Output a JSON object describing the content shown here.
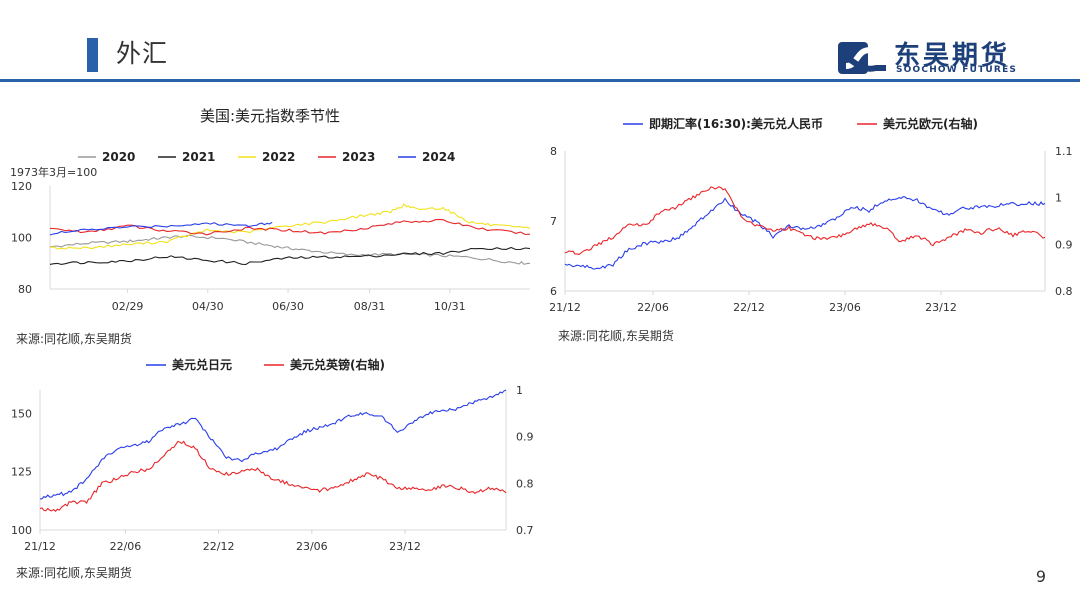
{
  "header": {
    "title": "外汇",
    "logo_name": "东吴期货",
    "logo_sub": "SOOCHOW FUTURES"
  },
  "page_number": "9",
  "chart_data": [
    {
      "id": "usd_index_seasonal",
      "type": "line",
      "title": "美国:美元指数季节性",
      "unit_note": "1973年3月=100",
      "x_ticks": [
        "02/29",
        "04/30",
        "06/30",
        "08/31",
        "10/31"
      ],
      "x_range_day_of_year": [
        1,
        366
      ],
      "ylim": [
        80,
        120
      ],
      "y_ticks": [
        80,
        100,
        120
      ],
      "source": "来源:同花顺,东吴期货",
      "series": [
        {
          "name": "2020",
          "color": "#999999",
          "day": [
            1,
            30,
            60,
            80,
            100,
            130,
            160,
            180,
            200,
            230,
            260,
            290,
            320,
            350,
            366
          ],
          "values": [
            96.4,
            97.8,
            98.5,
            99.5,
            100.5,
            99.8,
            97.5,
            96.0,
            94.8,
            93.2,
            93.5,
            93.2,
            92.3,
            90.5,
            89.9
          ]
        },
        {
          "name": "2021",
          "color": "#222222",
          "day": [
            1,
            30,
            60,
            90,
            120,
            150,
            180,
            210,
            240,
            270,
            300,
            330,
            366
          ],
          "values": [
            89.9,
            90.4,
            90.9,
            92.6,
            91.2,
            89.9,
            92.0,
            92.4,
            92.7,
            93.6,
            93.9,
            95.9,
            95.7
          ]
        },
        {
          "name": "2022",
          "color": "#f2e21c",
          "day": [
            1,
            30,
            60,
            90,
            120,
            150,
            180,
            210,
            240,
            260,
            270,
            280,
            300,
            320,
            340,
            366
          ],
          "values": [
            95.9,
            96.0,
            97.3,
            98.5,
            102.8,
            102.0,
            104.5,
            106.0,
            108.6,
            110.0,
            112.5,
            111.0,
            111.5,
            106.0,
            104.6,
            103.5
          ]
        },
        {
          "name": "2023",
          "color": "#e8262a",
          "day": [
            1,
            30,
            60,
            90,
            120,
            150,
            180,
            210,
            240,
            270,
            300,
            330,
            366
          ],
          "values": [
            103.5,
            102.0,
            104.6,
            102.5,
            101.5,
            103.5,
            102.9,
            101.7,
            103.6,
            106.2,
            106.6,
            103.3,
            101.3
          ]
        },
        {
          "name": "2024",
          "color": "#2a3ee8",
          "day": [
            1,
            30,
            60,
            90,
            120,
            150,
            170
          ],
          "values": [
            101.4,
            103.0,
            104.1,
            104.5,
            105.5,
            104.6,
            105.9
          ]
        }
      ]
    },
    {
      "id": "cny_eur",
      "type": "line",
      "legend": [
        "即期汇率(16:30):美元兑人民币",
        "美元兑欧元(右轴)"
      ],
      "x_ticks": [
        "21/12",
        "22/06",
        "22/12",
        "23/06",
        "23/12"
      ],
      "x_range": [
        "2021-12",
        "2024-06"
      ],
      "ylim_left": [
        6,
        8
      ],
      "y_ticks_left": [
        "6",
        "7",
        "8"
      ],
      "ylim_right": [
        0.8,
        1.1
      ],
      "y_ticks_right": [
        "0.8",
        "0.9",
        "1",
        "1.1"
      ],
      "source": "来源:同花顺,东吴期货",
      "series": [
        {
          "name": "即期汇率(16:30):美元兑人民币",
          "axis": "left",
          "color": "#2a3ee8",
          "months": [
            0,
            1,
            2,
            3,
            4,
            5,
            6,
            7,
            8,
            9,
            10,
            11,
            12,
            13,
            14,
            15,
            16,
            17,
            18,
            19,
            20,
            21,
            22,
            23,
            24,
            25,
            26,
            27,
            28,
            29,
            30
          ],
          "values": [
            6.37,
            6.36,
            6.32,
            6.38,
            6.6,
            6.68,
            6.71,
            6.75,
            6.92,
            7.12,
            7.3,
            7.1,
            6.98,
            6.78,
            6.93,
            6.88,
            6.93,
            7.05,
            7.2,
            7.15,
            7.3,
            7.33,
            7.3,
            7.15,
            7.1,
            7.19,
            7.2,
            7.22,
            7.24,
            7.25,
            7.25
          ]
        },
        {
          "name": "美元兑欧元(右轴)",
          "axis": "right",
          "color": "#e8262a",
          "months": [
            0,
            1,
            2,
            3,
            4,
            5,
            6,
            7,
            8,
            9,
            10,
            11,
            12,
            13,
            14,
            15,
            16,
            17,
            18,
            19,
            20,
            21,
            22,
            23,
            24,
            25,
            26,
            27,
            28,
            29,
            30
          ],
          "values": [
            0.885,
            0.88,
            0.9,
            0.915,
            0.945,
            0.94,
            0.97,
            0.98,
            1.0,
            1.02,
            1.02,
            0.96,
            0.94,
            0.93,
            0.935,
            0.92,
            0.91,
            0.915,
            0.93,
            0.945,
            0.935,
            0.905,
            0.92,
            0.9,
            0.915,
            0.93,
            0.925,
            0.935,
            0.92,
            0.93,
            0.915
          ]
        }
      ]
    },
    {
      "id": "jpy_gbp",
      "type": "line",
      "legend": [
        "美元兑日元",
        "美元兑英镑(右轴)"
      ],
      "x_ticks": [
        "21/12",
        "22/06",
        "22/12",
        "23/06",
        "23/12"
      ],
      "x_range": [
        "2021-12",
        "2024-06"
      ],
      "ylim_left": [
        100,
        160
      ],
      "y_ticks_left": [
        "100",
        "125",
        "150"
      ],
      "ylim_right": [
        0.7,
        1.0
      ],
      "y_ticks_right": [
        "0.7",
        "0.8",
        "0.9",
        "1"
      ],
      "source": "来源:同花顺,东吴期货",
      "series": [
        {
          "name": "美元兑日元",
          "axis": "left",
          "color": "#2a3ee8",
          "months": [
            0,
            1,
            2,
            3,
            4,
            5,
            6,
            7,
            8,
            9,
            10,
            11,
            12,
            13,
            14,
            15,
            16,
            17,
            18,
            19,
            20,
            21,
            22,
            23,
            24,
            25,
            26,
            27,
            28,
            29,
            30
          ],
          "values": [
            114,
            115,
            116,
            122,
            130,
            135,
            136,
            138,
            144,
            145,
            148,
            139,
            131,
            130,
            133,
            134,
            138,
            142,
            144,
            146,
            149,
            150,
            149,
            142,
            146,
            150,
            151,
            152,
            155,
            157,
            160
          ]
        },
        {
          "name": "美元兑英镑(右轴)",
          "axis": "right",
          "color": "#e8262a",
          "months": [
            0,
            1,
            2,
            3,
            4,
            5,
            6,
            7,
            8,
            9,
            10,
            11,
            12,
            13,
            14,
            15,
            16,
            17,
            18,
            19,
            20,
            21,
            22,
            23,
            24,
            25,
            26,
            27,
            28,
            29,
            30
          ],
          "values": [
            0.745,
            0.74,
            0.76,
            0.76,
            0.8,
            0.81,
            0.825,
            0.83,
            0.86,
            0.89,
            0.875,
            0.83,
            0.82,
            0.825,
            0.83,
            0.81,
            0.8,
            0.79,
            0.785,
            0.79,
            0.805,
            0.82,
            0.81,
            0.79,
            0.79,
            0.785,
            0.795,
            0.79,
            0.78,
            0.79,
            0.78
          ]
        }
      ]
    }
  ]
}
